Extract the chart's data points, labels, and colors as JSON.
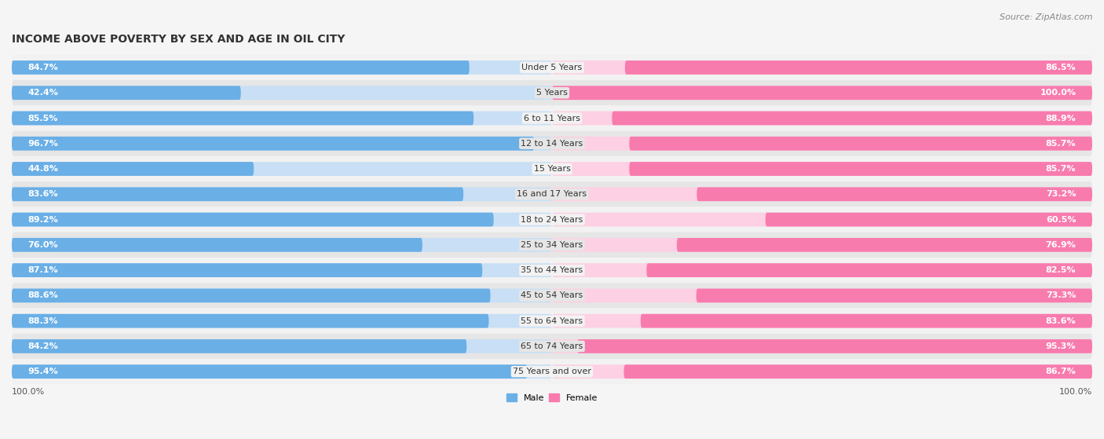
{
  "title": "INCOME ABOVE POVERTY BY SEX AND AGE IN OIL CITY",
  "source": "Source: ZipAtlas.com",
  "categories": [
    "Under 5 Years",
    "5 Years",
    "6 to 11 Years",
    "12 to 14 Years",
    "15 Years",
    "16 and 17 Years",
    "18 to 24 Years",
    "25 to 34 Years",
    "35 to 44 Years",
    "45 to 54 Years",
    "55 to 64 Years",
    "65 to 74 Years",
    "75 Years and over"
  ],
  "male_values": [
    84.7,
    42.4,
    85.5,
    96.7,
    44.8,
    83.6,
    89.2,
    76.0,
    87.1,
    88.6,
    88.3,
    84.2,
    95.4
  ],
  "female_values": [
    86.5,
    100.0,
    88.9,
    85.7,
    85.7,
    73.2,
    60.5,
    76.9,
    82.5,
    73.3,
    83.6,
    95.3,
    86.7
  ],
  "male_color": "#6aafe6",
  "female_color": "#f87bae",
  "male_color_light": "#c8dff5",
  "female_color_light": "#fdd0e3",
  "row_bg_light": "#f2f2f2",
  "row_bg_dark": "#e6e6e6",
  "fig_bg": "#f5f5f5",
  "title_fontsize": 10,
  "label_fontsize": 8,
  "source_fontsize": 8
}
